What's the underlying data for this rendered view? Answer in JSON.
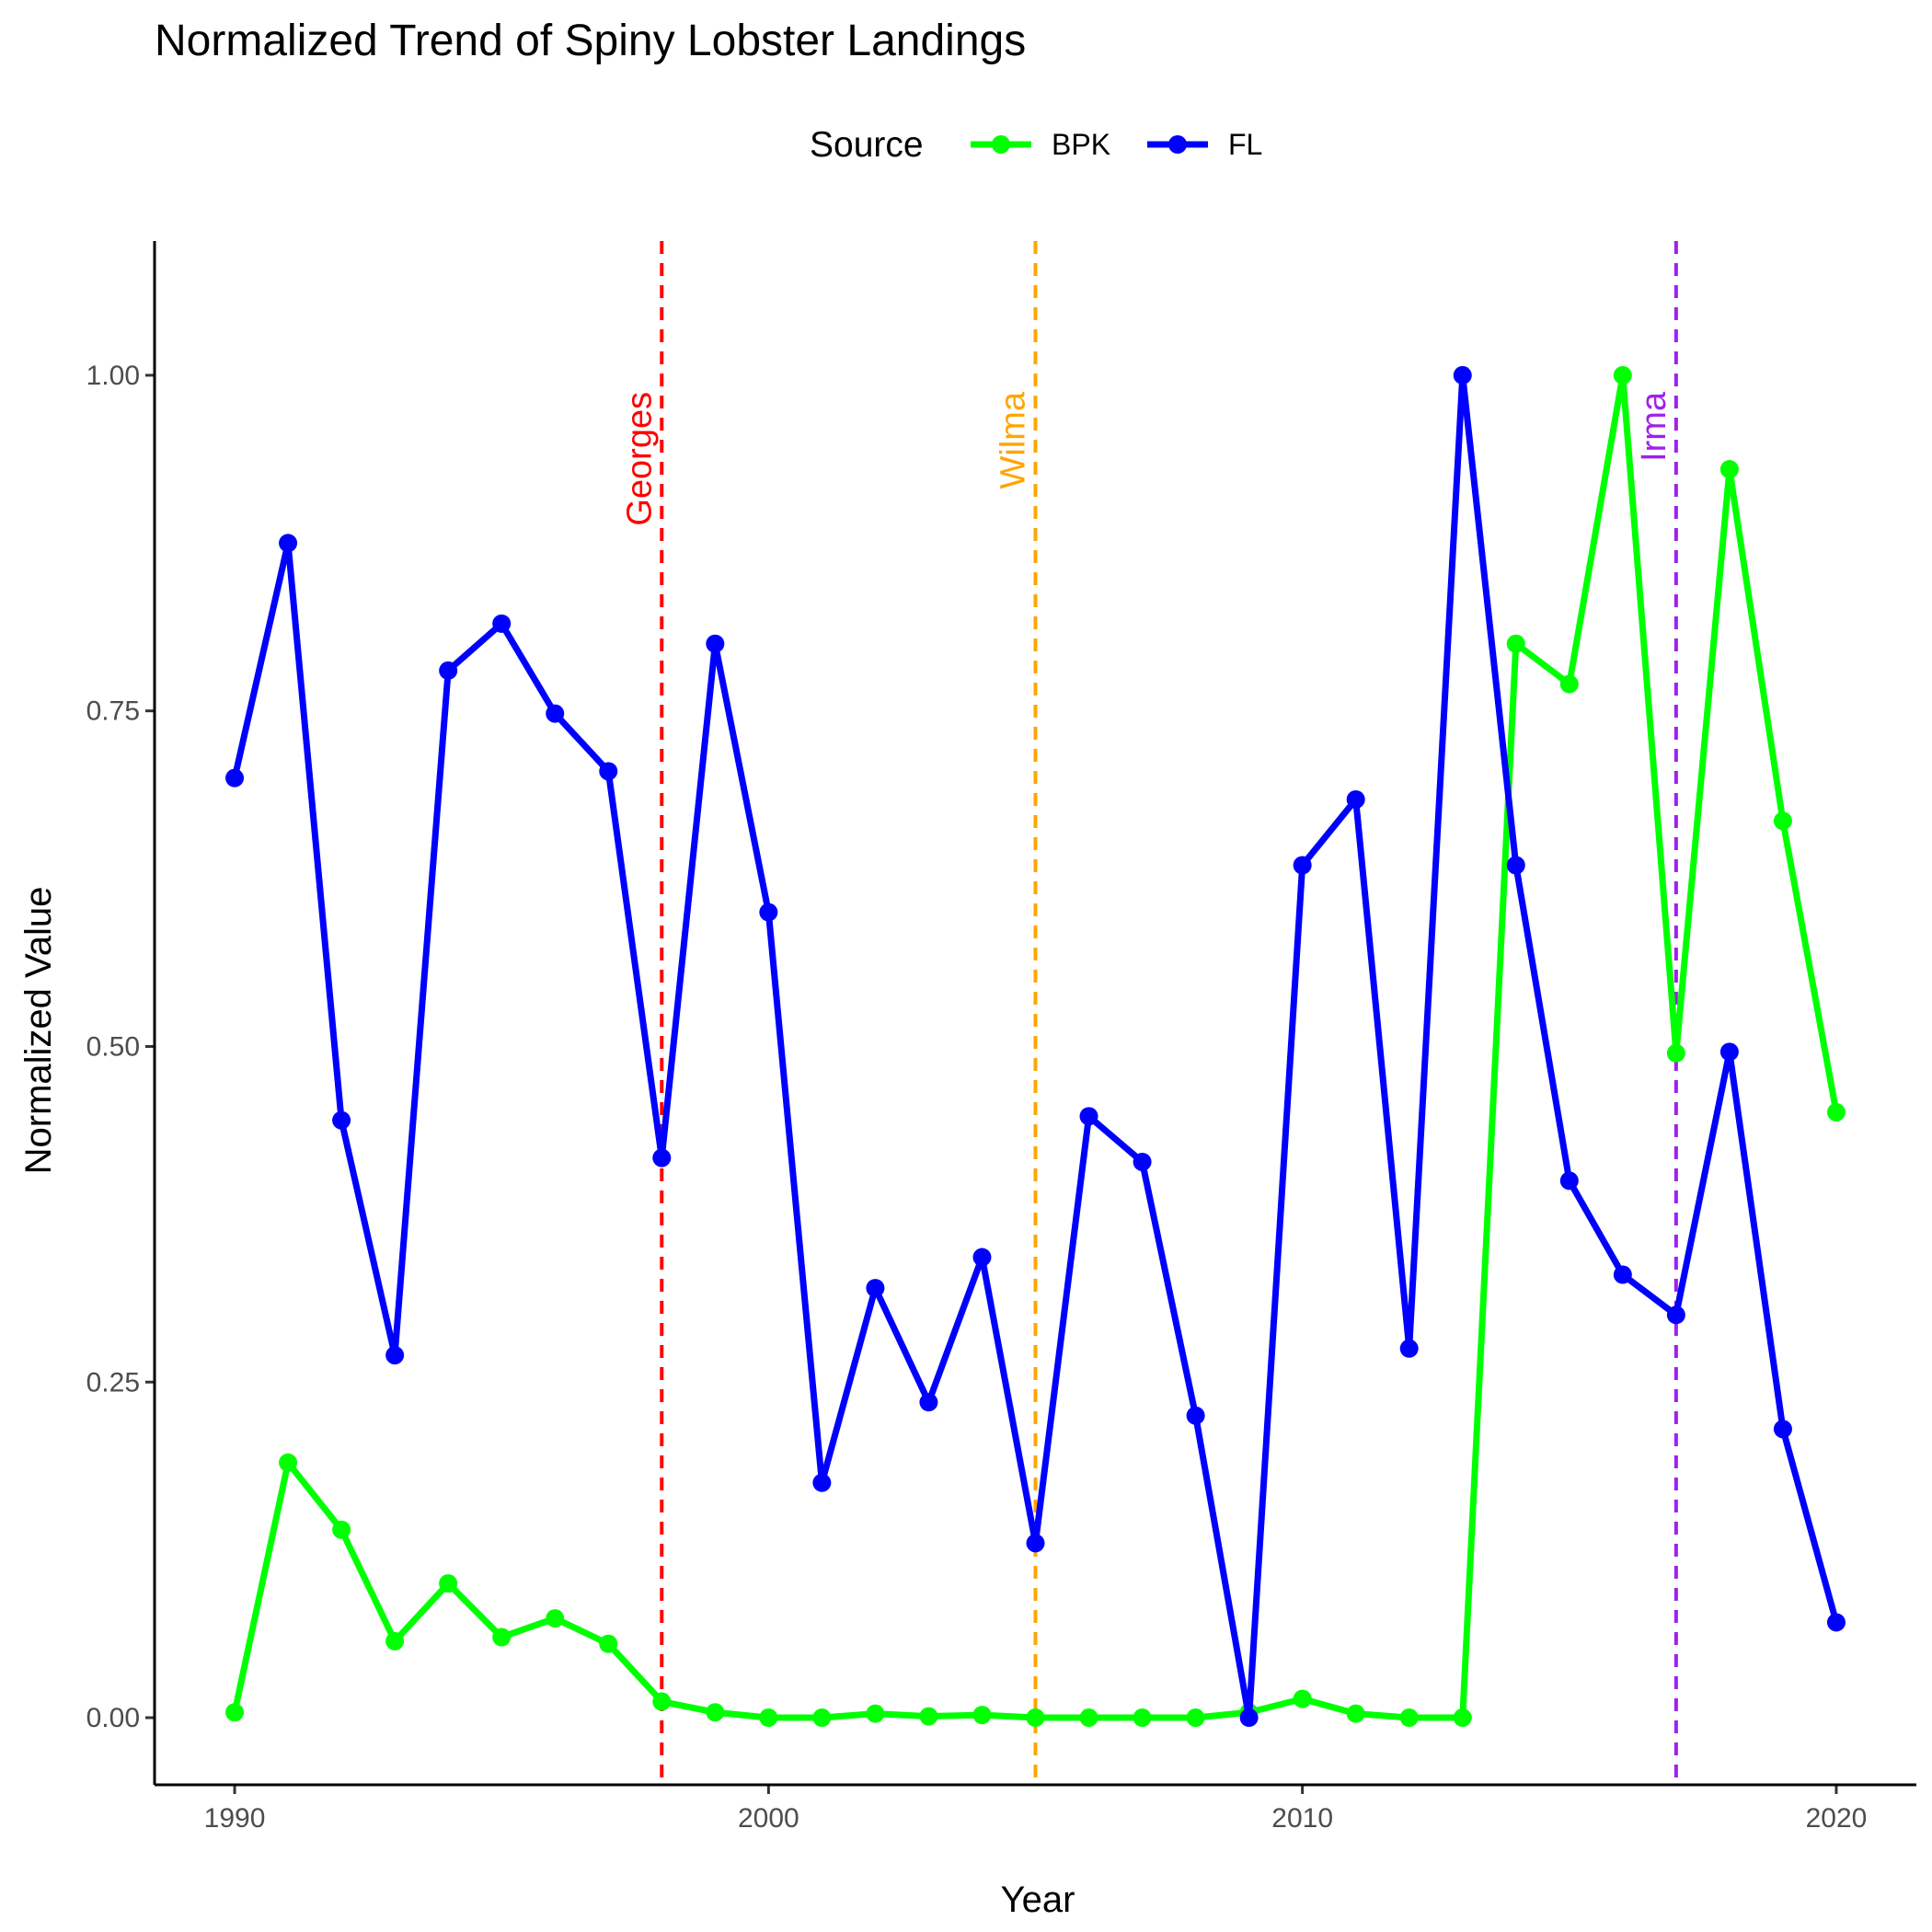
{
  "chart_data": {
    "type": "line",
    "title": "Normalized Trend of Spiny Lobster Landings",
    "xlabel": "Year",
    "ylabel": "Normalized Value",
    "xlim": [
      1988.5,
      2021.5
    ],
    "ylim": [
      -0.05,
      1.1
    ],
    "x_ticks": [
      1990,
      2000,
      2010,
      2020
    ],
    "y_ticks": [
      0.0,
      0.25,
      0.5,
      0.75,
      1.0
    ],
    "y_tick_labels": [
      "0.00",
      "0.25",
      "0.50",
      "0.75",
      "1.00"
    ],
    "legend": {
      "title": "Source",
      "position": "top"
    },
    "grid": false,
    "x": [
      1990,
      1991,
      1992,
      1993,
      1994,
      1995,
      1996,
      1997,
      1998,
      1999,
      2000,
      2001,
      2002,
      2003,
      2004,
      2005,
      2006,
      2007,
      2008,
      2009,
      2010,
      2011,
      2012,
      2013,
      2014,
      2015,
      2016,
      2017,
      2018,
      2019,
      2020
    ],
    "series": [
      {
        "name": "BPK",
        "color": "#00ff00",
        "values": [
          0.004,
          0.19,
          0.14,
          0.057,
          0.1,
          0.06,
          0.074,
          0.055,
          0.012,
          0.004,
          0.0,
          0.0,
          0.003,
          0.001,
          0.002,
          0.0,
          0.0,
          0.0,
          0.0,
          0.004,
          0.014,
          0.003,
          0.0,
          0.0,
          0.8,
          0.77,
          1.0,
          0.495,
          0.93,
          0.668,
          0.451
        ]
      },
      {
        "name": "FL",
        "color": "#0000ff",
        "values": [
          0.7,
          0.875,
          0.445,
          0.27,
          0.78,
          0.815,
          0.748,
          0.705,
          0.417,
          0.8,
          0.6,
          0.175,
          0.32,
          0.235,
          0.343,
          0.13,
          0.448,
          0.414,
          0.225,
          0.0,
          0.635,
          0.684,
          0.275,
          1.0,
          0.635,
          0.4,
          0.33,
          0.3,
          0.496,
          0.215,
          0.071
        ]
      }
    ],
    "events": [
      {
        "label": "Georges",
        "year": 1998,
        "color": "#ff0000"
      },
      {
        "label": "Wilma",
        "year": 2005,
        "color": "#ffa500"
      },
      {
        "label": "Irma",
        "year": 2017,
        "color": "#a020f0"
      }
    ]
  }
}
